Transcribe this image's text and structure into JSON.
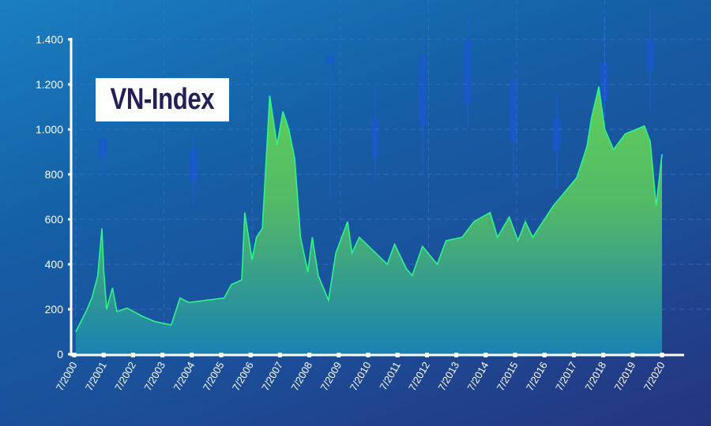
{
  "chart_data": {
    "type": "area",
    "title": "VN-Index",
    "xlabel": "",
    "ylabel": "",
    "ylim": [
      0,
      1400
    ],
    "xlim": [
      2000.5,
      2020.5
    ],
    "grid": true,
    "y_ticks": [
      0,
      200,
      400,
      600,
      800,
      1000,
      1200,
      1400
    ],
    "y_tick_labels": [
      "0",
      "200",
      "400",
      "600",
      "800",
      "1.000",
      "1.200",
      "1.400"
    ],
    "x_tick_labels": [
      "7/2000",
      "7/2001",
      "7/2002",
      "7/2003",
      "7/2004",
      "7/2005",
      "7/2006",
      "7/2007",
      "7/2008",
      "7/2009",
      "7/2010",
      "7/2011",
      "7/2012",
      "7/2013",
      "7/2014",
      "7/2015",
      "7/2016",
      "7/2017",
      "7/2018",
      "7/2019",
      "7/2020"
    ],
    "x": [
      2000.55,
      2000.9,
      2001.1,
      2001.3,
      2001.44,
      2001.5,
      2001.6,
      2001.8,
      2001.95,
      2002.3,
      2002.8,
      2003.25,
      2003.8,
      2004.1,
      2004.4,
      2005.0,
      2005.6,
      2005.85,
      2006.2,
      2006.3,
      2006.55,
      2006.7,
      2006.9,
      2007.15,
      2007.4,
      2007.6,
      2007.8,
      2008.0,
      2008.2,
      2008.45,
      2008.6,
      2008.8,
      2009.15,
      2009.4,
      2009.8,
      2009.95,
      2010.2,
      2010.6,
      2011.15,
      2011.4,
      2011.8,
      2012.0,
      2012.35,
      2012.85,
      2013.15,
      2013.7,
      2014.1,
      2014.65,
      2014.9,
      2015.3,
      2015.6,
      2015.85,
      2016.1,
      2016.8,
      2017.6,
      2017.95,
      2018.1,
      2018.35,
      2018.55,
      2018.85,
      2019.25,
      2019.9,
      2020.1,
      2020.3,
      2020.5
    ],
    "values": [
      100,
      190,
      250,
      350,
      560,
      380,
      200,
      295,
      190,
      205,
      170,
      145,
      130,
      250,
      230,
      240,
      250,
      310,
      330,
      630,
      420,
      520,
      560,
      1150,
      930,
      1080,
      1000,
      870,
      520,
      365,
      520,
      350,
      240,
      450,
      590,
      450,
      520,
      470,
      400,
      490,
      380,
      350,
      480,
      400,
      505,
      520,
      590,
      630,
      520,
      610,
      505,
      590,
      520,
      660,
      785,
      925,
      1050,
      1190,
      1000,
      910,
      980,
      1015,
      945,
      660,
      890
    ],
    "colors": {
      "line": "#2ef58a",
      "fill_top": "#5bc85a",
      "fill_bottom": "#1b86b0",
      "axis": "#ffffff",
      "title_text": "#222157"
    }
  }
}
